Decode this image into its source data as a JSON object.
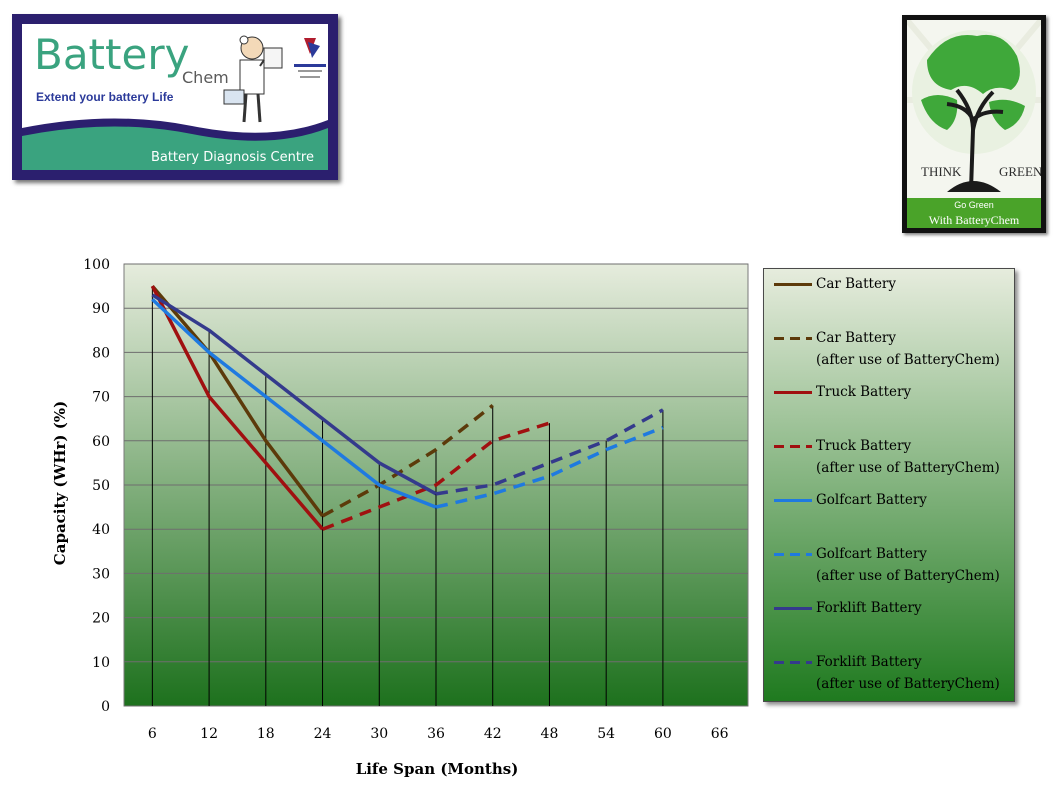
{
  "logo": {
    "brand": "Battery",
    "brand_suffix": "Chem",
    "tagline": "Extend your battery Life",
    "band_text": "Battery Diagnosis Centre",
    "colors": {
      "brand": "#3aa37f",
      "frame": "#2b1f6e",
      "band": "#3aa37f",
      "tagline": "#2b3a9a"
    }
  },
  "promo": {
    "think": "THINK",
    "green": "GREEN",
    "go_green": "Go Green",
    "with_text": "With BatteryChem",
    "colors": {
      "bar": "#4aa329",
      "globe": "#3fa83a"
    }
  },
  "chart_data": {
    "type": "line",
    "xlabel": "Life Span (Months)",
    "ylabel": "Capacity (WHr) (%)",
    "x_ticks": [
      6,
      12,
      18,
      24,
      30,
      36,
      42,
      48,
      54,
      60,
      66
    ],
    "y_ticks": [
      0,
      10,
      20,
      30,
      40,
      50,
      60,
      70,
      80,
      90,
      100
    ],
    "xlim": [
      3,
      69
    ],
    "ylim": [
      0,
      100
    ],
    "grid": "horizontal",
    "legend": "right",
    "series": [
      {
        "name": "Car Battery",
        "style": "solid",
        "color": "#5c3a0a",
        "x": [
          6,
          12,
          18,
          24
        ],
        "y": [
          95,
          80,
          60,
          43
        ]
      },
      {
        "name": "Car Battery",
        "name2": "(after use of BatteryChem)",
        "style": "dashed",
        "color": "#5c3a0a",
        "x": [
          24,
          30,
          36,
          42
        ],
        "y": [
          43,
          50,
          58,
          68
        ]
      },
      {
        "name": "Truck Battery",
        "style": "solid",
        "color": "#a01010",
        "x": [
          6,
          12,
          18,
          24
        ],
        "y": [
          95,
          70,
          55,
          40
        ]
      },
      {
        "name": "Truck Battery",
        "name2": "(after use of BatteryChem)",
        "style": "dashed",
        "color": "#a01010",
        "x": [
          24,
          30,
          36,
          42,
          48
        ],
        "y": [
          40,
          45,
          50,
          60,
          64
        ]
      },
      {
        "name": "Golfcart Battery",
        "style": "solid",
        "color": "#1f7ae0",
        "x": [
          6,
          12,
          18,
          24,
          30,
          36
        ],
        "y": [
          92,
          80,
          70,
          60,
          50,
          45
        ]
      },
      {
        "name": "Golfcart Battery",
        "name2": "(after use of BatteryChem)",
        "style": "dashed",
        "color": "#1f7ae0",
        "x": [
          36,
          42,
          48,
          54,
          60
        ],
        "y": [
          45,
          48,
          52,
          58,
          63
        ]
      },
      {
        "name": "Forklift Battery",
        "style": "solid",
        "color": "#343a8c",
        "x": [
          6,
          12,
          18,
          24,
          30,
          36
        ],
        "y": [
          93,
          85,
          75,
          65,
          55,
          48
        ]
      },
      {
        "name": "Forklift Battery",
        "name2": "(after use of BatteryChem)",
        "style": "dashed",
        "color": "#343a8c",
        "x": [
          36,
          42,
          48,
          54,
          60
        ],
        "y": [
          48,
          50,
          55,
          60,
          67
        ]
      }
    ],
    "colors": {
      "plot_top": "#e6ecdd",
      "plot_bottom": "#1d711d",
      "gridline": "#6e6e6e",
      "droplines": "#000000"
    }
  }
}
